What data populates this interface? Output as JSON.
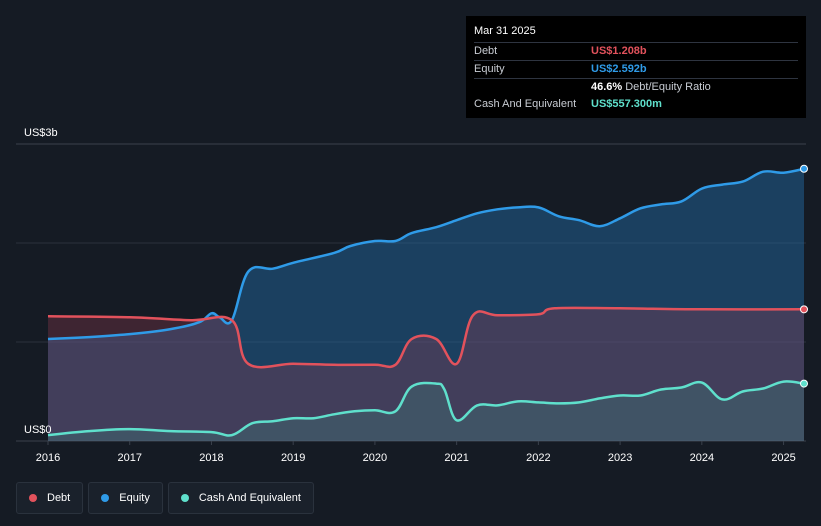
{
  "tooltip": {
    "date": "Mar 31 2025",
    "rows": [
      {
        "label": "Debt",
        "value": "US$1.208b",
        "color": "#e2525c"
      },
      {
        "label": "Equity",
        "value": "US$2.592b",
        "color": "#2f9be8"
      },
      {
        "label": "",
        "value": "46.6%",
        "suffix": "Debt/Equity Ratio",
        "color": "#ffffff"
      },
      {
        "label": "Cash And Equivalent",
        "value": "US$557.300m",
        "color": "#5fe0cc"
      }
    ]
  },
  "legend": [
    {
      "label": "Debt",
      "color": "#e2525c"
    },
    {
      "label": "Equity",
      "color": "#2f9be8"
    },
    {
      "label": "Cash And Equivalent",
      "color": "#5fe0cc"
    }
  ],
  "chart_data": {
    "type": "area",
    "y_unit": "US$ billions",
    "ylim": [
      0,
      3.0
    ],
    "y_tick_labels": [
      {
        "value": 3.0,
        "label": "US$3b"
      },
      {
        "value": 0,
        "label": "US$0"
      }
    ],
    "xlim": [
      2016.0,
      2025.25
    ],
    "x_tick_labels": [
      "2016",
      "2017",
      "2018",
      "2019",
      "2020",
      "2021",
      "2022",
      "2023",
      "2024",
      "2025"
    ],
    "series": [
      {
        "name": "Debt",
        "color": "#e2525c",
        "points": [
          [
            2016.0,
            1.26
          ],
          [
            2017.0,
            1.25
          ],
          [
            2017.75,
            1.22
          ],
          [
            2018.25,
            1.22
          ],
          [
            2018.45,
            0.78
          ],
          [
            2019.0,
            0.78
          ],
          [
            2019.5,
            0.77
          ],
          [
            2020.0,
            0.77
          ],
          [
            2020.25,
            0.77
          ],
          [
            2020.45,
            1.03
          ],
          [
            2020.75,
            1.03
          ],
          [
            2021.0,
            0.78
          ],
          [
            2021.2,
            1.27
          ],
          [
            2021.5,
            1.27
          ],
          [
            2022.0,
            1.28
          ],
          [
            2022.2,
            1.34
          ],
          [
            2023.0,
            1.34
          ],
          [
            2024.0,
            1.33
          ],
          [
            2025.25,
            1.33
          ]
        ]
      },
      {
        "name": "Equity",
        "color": "#2f9be8",
        "points": [
          [
            2016.0,
            1.03
          ],
          [
            2016.5,
            1.05
          ],
          [
            2017.0,
            1.08
          ],
          [
            2017.5,
            1.13
          ],
          [
            2017.85,
            1.2
          ],
          [
            2018.0,
            1.29
          ],
          [
            2018.1,
            1.25
          ],
          [
            2018.25,
            1.22
          ],
          [
            2018.45,
            1.71
          ],
          [
            2018.75,
            1.74
          ],
          [
            2019.0,
            1.8
          ],
          [
            2019.5,
            1.9
          ],
          [
            2019.7,
            1.97
          ],
          [
            2020.0,
            2.02
          ],
          [
            2020.25,
            2.02
          ],
          [
            2020.45,
            2.1
          ],
          [
            2020.75,
            2.16
          ],
          [
            2021.0,
            2.23
          ],
          [
            2021.25,
            2.3
          ],
          [
            2021.5,
            2.34
          ],
          [
            2021.75,
            2.36
          ],
          [
            2022.0,
            2.36
          ],
          [
            2022.25,
            2.27
          ],
          [
            2022.5,
            2.23
          ],
          [
            2022.75,
            2.17
          ],
          [
            2023.0,
            2.25
          ],
          [
            2023.25,
            2.35
          ],
          [
            2023.5,
            2.39
          ],
          [
            2023.75,
            2.42
          ],
          [
            2024.0,
            2.55
          ],
          [
            2024.25,
            2.59
          ],
          [
            2024.5,
            2.62
          ],
          [
            2024.75,
            2.72
          ],
          [
            2025.0,
            2.71
          ],
          [
            2025.25,
            2.75
          ]
        ]
      },
      {
        "name": "Cash And Equivalent",
        "color": "#5fe0cc",
        "points": [
          [
            2016.0,
            0.06
          ],
          [
            2016.5,
            0.1
          ],
          [
            2017.0,
            0.12
          ],
          [
            2017.5,
            0.1
          ],
          [
            2018.0,
            0.09
          ],
          [
            2018.25,
            0.06
          ],
          [
            2018.5,
            0.18
          ],
          [
            2018.75,
            0.2
          ],
          [
            2019.0,
            0.23
          ],
          [
            2019.25,
            0.23
          ],
          [
            2019.5,
            0.27
          ],
          [
            2019.75,
            0.3
          ],
          [
            2020.0,
            0.31
          ],
          [
            2020.25,
            0.3
          ],
          [
            2020.45,
            0.55
          ],
          [
            2020.75,
            0.58
          ],
          [
            2020.85,
            0.52
          ],
          [
            2021.0,
            0.21
          ],
          [
            2021.25,
            0.36
          ],
          [
            2021.5,
            0.36
          ],
          [
            2021.75,
            0.4
          ],
          [
            2022.0,
            0.39
          ],
          [
            2022.25,
            0.38
          ],
          [
            2022.5,
            0.39
          ],
          [
            2022.75,
            0.43
          ],
          [
            2023.0,
            0.46
          ],
          [
            2023.25,
            0.46
          ],
          [
            2023.5,
            0.52
          ],
          [
            2023.75,
            0.54
          ],
          [
            2024.0,
            0.59
          ],
          [
            2024.25,
            0.42
          ],
          [
            2024.5,
            0.5
          ],
          [
            2024.75,
            0.53
          ],
          [
            2025.0,
            0.6
          ],
          [
            2025.25,
            0.58
          ]
        ]
      }
    ]
  }
}
